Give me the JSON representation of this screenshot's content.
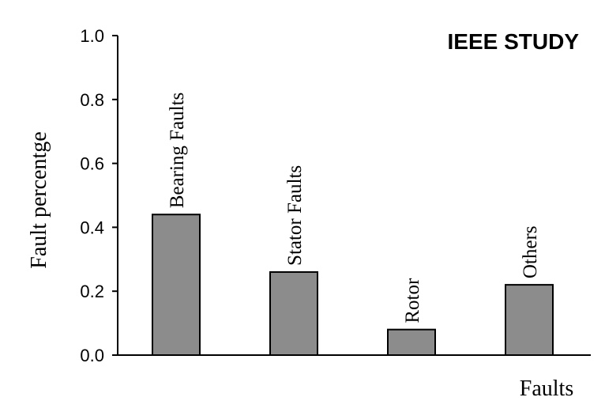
{
  "chart_data": {
    "type": "bar",
    "title": "IEEE STUDY",
    "xlabel": "Faults",
    "ylabel": "Fault percentge",
    "categories": [
      "Bearing Faults",
      "Stator Faults",
      "Rotor",
      "Others"
    ],
    "values": [
      0.44,
      0.26,
      0.08,
      0.22
    ],
    "ylim": [
      0,
      1.0
    ],
    "yticks": [
      "0.0",
      "0.2",
      "0.4",
      "0.6",
      "0.8",
      "1.0"
    ],
    "grid": false,
    "bar_color": "#8c8c8c"
  }
}
